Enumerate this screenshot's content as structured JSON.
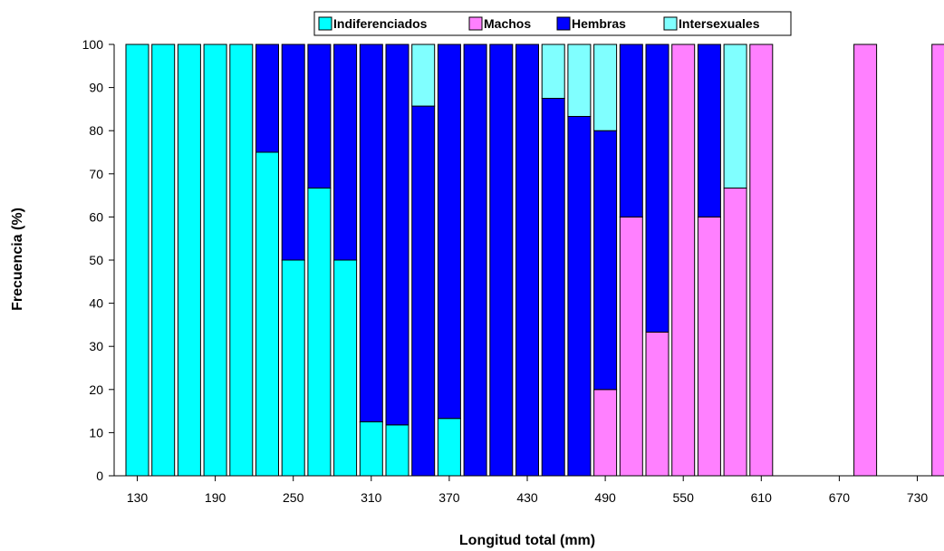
{
  "chart_data": {
    "type": "bar",
    "stacked": true,
    "title": "",
    "xlabel": "Longitud total (mm)",
    "ylabel": "Frecuencia (%)",
    "ylim": [
      0,
      100
    ],
    "yticks": [
      0,
      10,
      20,
      30,
      40,
      50,
      60,
      70,
      80,
      90,
      100
    ],
    "xtick_labels": [
      "130",
      "190",
      "250",
      "310",
      "370",
      "430",
      "490",
      "550",
      "610",
      "670",
      "730"
    ],
    "categories": [
      130,
      150,
      170,
      190,
      210,
      230,
      250,
      270,
      290,
      310,
      330,
      350,
      370,
      390,
      410,
      430,
      450,
      470,
      490,
      510,
      530,
      550,
      570,
      590,
      610,
      630,
      650,
      670,
      690,
      710,
      730,
      750
    ],
    "grid": false,
    "legend_position": "top",
    "series": [
      {
        "name": "Indiferenciados",
        "color": "#00FFFF",
        "values": [
          100,
          100,
          100,
          100,
          100,
          75,
          50,
          66.7,
          50,
          12.5,
          11.8,
          0,
          13.3,
          0,
          0,
          0,
          0,
          0,
          0,
          0,
          0,
          0,
          0,
          0,
          0,
          0,
          0,
          0,
          0,
          0,
          0,
          0
        ]
      },
      {
        "name": "Machos",
        "color": "#FF80FF",
        "values": [
          0,
          0,
          0,
          0,
          0,
          0,
          0,
          0,
          0,
          0,
          0,
          0,
          0,
          0,
          0,
          0,
          0,
          0,
          20,
          60,
          33.3,
          100,
          60,
          66.7,
          100,
          0,
          0,
          0,
          100,
          0,
          0,
          100
        ]
      },
      {
        "name": "Hembras",
        "color": "#0000FF",
        "values": [
          0,
          0,
          0,
          0,
          0,
          25,
          50,
          33.3,
          50,
          87.5,
          88.2,
          85.7,
          86.7,
          100,
          100,
          100,
          87.5,
          83.3,
          60,
          40,
          66.7,
          0,
          40,
          0,
          0,
          0,
          0,
          0,
          0,
          0,
          0,
          0
        ]
      },
      {
        "name": "Intersexuales",
        "color": "#80FFFF",
        "values": [
          0,
          0,
          0,
          0,
          0,
          0,
          0,
          0,
          0,
          0,
          0,
          14.3,
          0,
          0,
          0,
          0,
          12.5,
          16.7,
          20,
          0,
          0,
          0,
          0,
          33.3,
          0,
          0,
          0,
          0,
          0,
          0,
          0,
          0
        ]
      }
    ]
  }
}
